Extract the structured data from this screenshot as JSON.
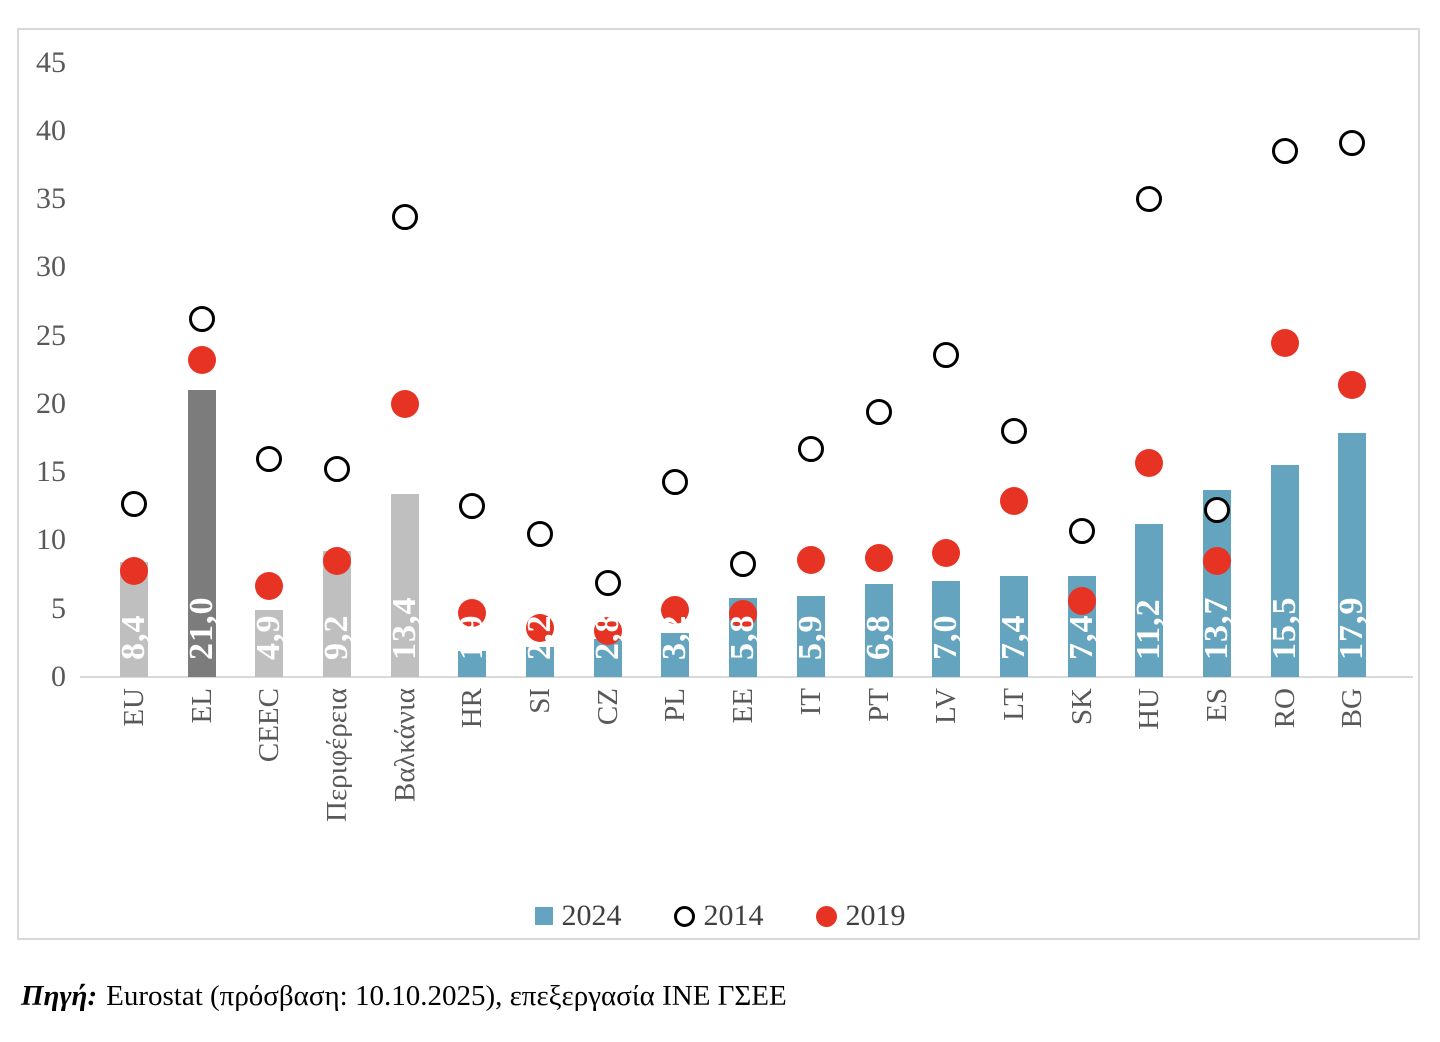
{
  "colors": {
    "bar_blue": "#64A4BE",
    "bar_gray": "#BFBFBF",
    "bar_dark": "#7C7C7C",
    "dot_red": "#E73323",
    "circle_stroke": "#000000",
    "axis_line": "#D9D9D9",
    "axis_text": "#595959",
    "legend_text": "#3F3F3F",
    "value_label": "#FFFFFF"
  },
  "chart_data": {
    "type": "bar",
    "title": "",
    "categories": [
      "EU",
      "EL",
      "CEEC",
      "Περιφέρεια",
      "Βαλκάνια",
      "HR",
      "SI",
      "CZ",
      "PL",
      "EE",
      "IT",
      "PT",
      "LV",
      "LT",
      "SK",
      "HU",
      "ES",
      "RO",
      "BG"
    ],
    "bar_styles": [
      "gray",
      "dark",
      "gray",
      "gray",
      "gray",
      "blue",
      "blue",
      "blue",
      "blue",
      "blue",
      "blue",
      "blue",
      "blue",
      "blue",
      "blue",
      "blue",
      "blue",
      "blue",
      "blue"
    ],
    "series": [
      {
        "name": "2024",
        "kind": "bar",
        "values": [
          8.4,
          21.0,
          4.9,
          9.2,
          13.4,
          1.9,
          2.2,
          2.8,
          3.2,
          5.8,
          5.9,
          6.8,
          7.0,
          7.4,
          7.4,
          11.2,
          13.7,
          15.5,
          17.9
        ],
        "value_labels": [
          "8,4",
          "21,0",
          "4,9",
          "9,2",
          "13,4",
          "1,9",
          "2,2",
          "2,8",
          "3,2",
          "5,8",
          "5,9",
          "6,8",
          "7,0",
          "7,4",
          "7,4",
          "11,2",
          "13,7",
          "15,5",
          "17,9"
        ]
      },
      {
        "name": "2014",
        "kind": "scatter",
        "marker": "hollow-circle",
        "values": [
          12.7,
          26.2,
          16.0,
          15.2,
          33.7,
          12.5,
          10.5,
          6.9,
          14.3,
          8.3,
          16.7,
          19.4,
          23.6,
          18.0,
          10.7,
          35.0,
          12.2,
          38.5,
          39.1
        ]
      },
      {
        "name": "2019",
        "kind": "scatter",
        "marker": "filled-circle",
        "values": [
          7.8,
          23.2,
          6.7,
          8.5,
          20.0,
          4.7,
          3.6,
          3.4,
          4.9,
          4.6,
          8.6,
          8.7,
          9.1,
          12.9,
          5.6,
          15.7,
          8.5,
          24.5,
          21.4
        ]
      }
    ],
    "ylim": [
      0,
      45
    ],
    "yticks": [
      0,
      5,
      10,
      15,
      20,
      25,
      30,
      35,
      40,
      45
    ],
    "grid": false,
    "legend_position": "bottom"
  },
  "legend": {
    "items": [
      {
        "label": "2024",
        "marker": "square"
      },
      {
        "label": "2014",
        "marker": "hollow-circle"
      },
      {
        "label": "2019",
        "marker": "filled-circle"
      }
    ]
  },
  "source": {
    "prefix": "Πηγή:",
    "text": "Eurostat (πρόσβαση: 10.10.2025), επεξεργασία ΙΝΕ ΓΣΕΕ"
  }
}
